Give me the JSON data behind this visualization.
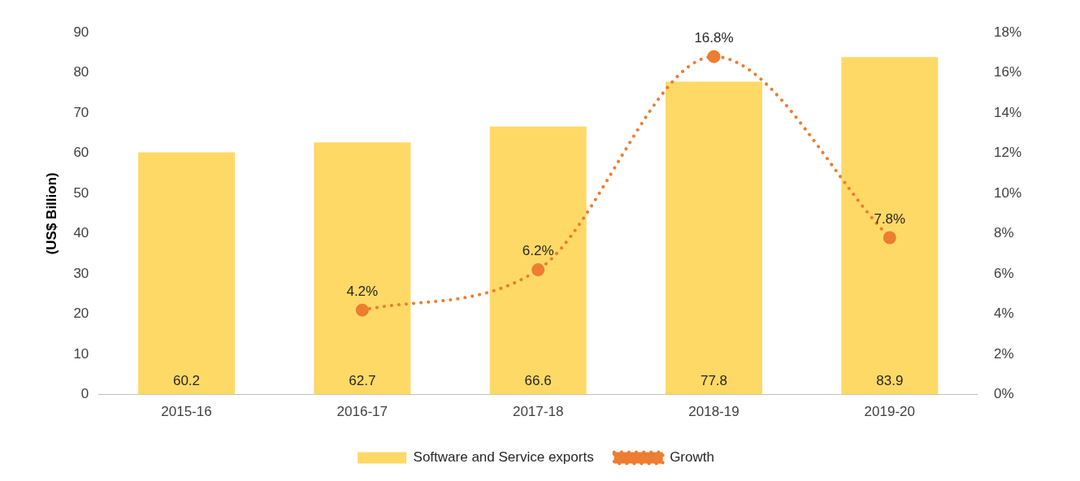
{
  "chart_data": {
    "type": "bar",
    "ylabel": "(US$ Billion)",
    "categories": [
      "2015-16",
      "2016-17",
      "2017-18",
      "2018-19",
      "2019-20"
    ],
    "series": [
      {
        "name": "Software and Service exports",
        "color": "#ffd966",
        "values": [
          60.2,
          62.7,
          66.6,
          77.8,
          83.9
        ],
        "value_labels": [
          "60.2",
          "62.7",
          "66.6",
          "77.8",
          "83.9"
        ]
      },
      {
        "name": "Growth",
        "type": "line",
        "axis": "y2",
        "color": "#ed7d31",
        "line_style": "dotted",
        "marker": "circle",
        "values": [
          null,
          4.2,
          6.2,
          16.8,
          7.8
        ],
        "value_labels": [
          null,
          "4.2%",
          "6.2%",
          "16.8%",
          "7.8%"
        ]
      }
    ],
    "ylim": [
      0,
      90
    ],
    "yticks": [
      0,
      10,
      20,
      30,
      40,
      50,
      60,
      70,
      80,
      90
    ],
    "y2lim": [
      0,
      18
    ],
    "y2ticks": [
      {
        "value": 0,
        "label": "0%"
      },
      {
        "value": 2,
        "label": "2%"
      },
      {
        "value": 4,
        "label": "4%"
      },
      {
        "value": 6,
        "label": "6%"
      },
      {
        "value": 8,
        "label": "8%"
      },
      {
        "value": 10,
        "label": "10%"
      },
      {
        "value": 12,
        "label": "12%"
      },
      {
        "value": 14,
        "label": "14%"
      },
      {
        "value": 16,
        "label": "16%"
      },
      {
        "value": 18,
        "label": "18%"
      }
    ],
    "grid": false,
    "legend": "bottom"
  }
}
